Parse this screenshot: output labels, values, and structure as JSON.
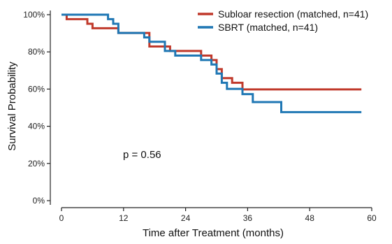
{
  "chart_data": {
    "type": "line",
    "title": "",
    "xlabel": "Time after Treatment (months)",
    "ylabel": "Survival Probability",
    "xlim": [
      -2,
      60
    ],
    "ylim": [
      0,
      100
    ],
    "x_ticks": [
      0,
      12,
      24,
      36,
      48,
      60
    ],
    "x_tick_labels": [
      "0",
      "12",
      "24",
      "36",
      "48",
      "60"
    ],
    "y_ticks": [
      0,
      20,
      40,
      60,
      80,
      100
    ],
    "y_tick_labels": [
      "0%",
      "20%",
      "40%",
      "60%",
      "80%",
      "100%"
    ],
    "grid": false,
    "legend_position": "top-right",
    "step": true,
    "annotation": "p = 0.56",
    "series": [
      {
        "name": "Subloar resection (matched, n=41)",
        "color": "#c0392b",
        "x": [
          0,
          1,
          5,
          6,
          9.5,
          11,
          17,
          21,
          23,
          27,
          29,
          30,
          31,
          33,
          35,
          38,
          58
        ],
        "y": [
          100,
          97.6,
          95.1,
          92.7,
          92.7,
          90.2,
          82.9,
          80.5,
          80.5,
          78.0,
          75.6,
          70.7,
          65.9,
          63.4,
          59.8,
          59.8,
          59.8
        ]
      },
      {
        "name": "SBRT (matched, n=41)",
        "color": "#1f77b4",
        "x": [
          0,
          9,
          10,
          11,
          16,
          17,
          20,
          22,
          25,
          27,
          29,
          30,
          31,
          32,
          35,
          37,
          42.5,
          58
        ],
        "y": [
          100,
          97.6,
          95.1,
          90.2,
          87.8,
          85.4,
          80.5,
          78.0,
          78.0,
          75.6,
          73.2,
          68.3,
          63.4,
          60.1,
          57.3,
          53.0,
          47.6,
          47.6
        ]
      }
    ]
  }
}
